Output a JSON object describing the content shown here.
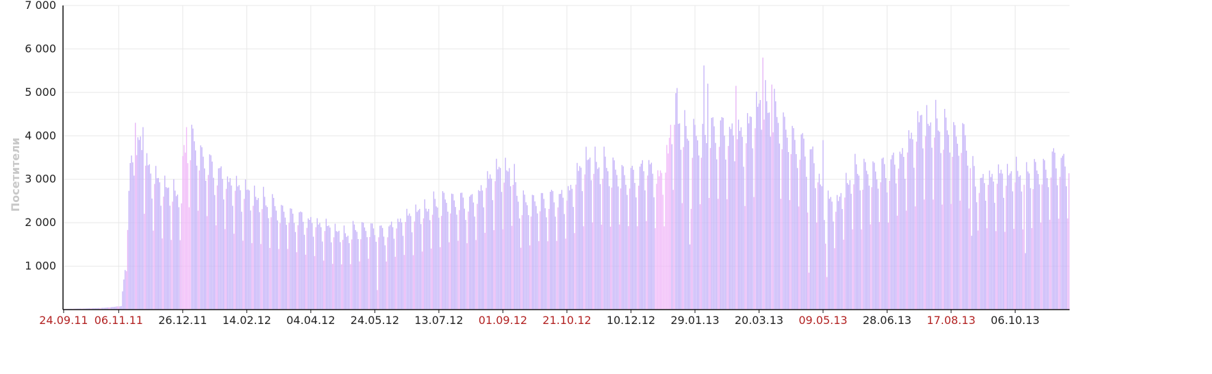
{
  "chart_data": {
    "type": "bar",
    "title": "",
    "xlabel": "",
    "ylabel": "Посетители",
    "ylim": [
      0,
      7000
    ],
    "yticks": [
      1000,
      2000,
      3000,
      4000,
      5000,
      6000,
      7000
    ],
    "ytick_labels": [
      "1 000",
      "2 000",
      "3 000",
      "4 000",
      "5 000",
      "6 000",
      "7 000"
    ],
    "grid": true,
    "x_start": "2011-09-24",
    "x_end": "2013-11-17",
    "xtick_labels": [
      {
        "label": "24.09.11",
        "date": "2011-09-24",
        "color": "#b22222"
      },
      {
        "label": "06.11.11",
        "date": "2011-11-06",
        "color": "#b22222"
      },
      {
        "label": "26.12.11",
        "date": "2011-12-26",
        "color": "#222222"
      },
      {
        "label": "14.02.12",
        "date": "2012-02-14",
        "color": "#222222"
      },
      {
        "label": "04.04.12",
        "date": "2012-04-04",
        "color": "#222222"
      },
      {
        "label": "24.05.12",
        "date": "2012-05-24",
        "color": "#222222"
      },
      {
        "label": "13.07.12",
        "date": "2012-07-13",
        "color": "#222222"
      },
      {
        "label": "01.09.12",
        "date": "2012-09-01",
        "color": "#b22222"
      },
      {
        "label": "21.10.12",
        "date": "2012-10-21",
        "color": "#b22222"
      },
      {
        "label": "10.12.12",
        "date": "2012-12-10",
        "color": "#222222"
      },
      {
        "label": "29.01.13",
        "date": "2013-01-29",
        "color": "#222222"
      },
      {
        "label": "20.03.13",
        "date": "2013-03-20",
        "color": "#222222"
      },
      {
        "label": "09.05.13",
        "date": "2013-05-09",
        "color": "#b22222"
      },
      {
        "label": "28.06.13",
        "date": "2013-06-28",
        "color": "#222222"
      },
      {
        "label": "17.08.13",
        "date": "2013-08-17",
        "color": "#b22222"
      },
      {
        "label": "06.10.13",
        "date": "2013-10-06",
        "color": "#222222"
      }
    ],
    "colors": {
      "weekday": "#c5b3f8",
      "weekend": "#e6b3f6",
      "holiday": "#f0b8f8"
    },
    "weekday_profile": [
      1.04,
      1.0,
      0.98,
      0.94,
      0.82,
      0.58,
      0.88
    ],
    "series": [
      {
        "values_description_note": "",
        "anchors": [
          [
            "2011-09-24",
            15
          ],
          [
            "2011-10-10",
            25
          ],
          [
            "2011-10-25",
            40
          ],
          [
            "2011-11-08",
            80
          ],
          [
            "2011-11-12",
            1400
          ],
          [
            "2011-11-15",
            3100
          ],
          [
            "2011-11-19",
            3900
          ],
          [
            "2011-11-25",
            3600
          ],
          [
            "2011-12-03",
            3000
          ],
          [
            "2011-12-15",
            2700
          ],
          [
            "2011-12-25",
            2650
          ],
          [
            "2011-12-27",
            3500
          ],
          [
            "2011-12-31",
            3950
          ],
          [
            "2012-01-10",
            3500
          ],
          [
            "2012-01-22",
            3100
          ],
          [
            "2012-02-05",
            2800
          ],
          [
            "2012-02-25",
            2500
          ],
          [
            "2012-03-15",
            2200
          ],
          [
            "2012-04-04",
            2000
          ],
          [
            "2012-05-01",
            1700
          ],
          [
            "2012-05-12",
            1850
          ],
          [
            "2012-05-22",
            1850
          ],
          [
            "2012-05-31",
            1750
          ],
          [
            "2012-06-12",
            2000
          ],
          [
            "2012-06-30",
            2250
          ],
          [
            "2012-07-20",
            2500
          ],
          [
            "2012-08-08",
            2450
          ],
          [
            "2012-08-25",
            3100
          ],
          [
            "2012-09-08",
            3200
          ],
          [
            "2012-09-14",
            2400
          ],
          [
            "2012-10-05",
            2500
          ],
          [
            "2012-10-21",
            2600
          ],
          [
            "2012-11-05",
            3400
          ],
          [
            "2012-11-25",
            3200
          ],
          [
            "2012-12-10",
            3000
          ],
          [
            "2012-12-25",
            3300
          ],
          [
            "2012-12-31",
            2900
          ],
          [
            "2013-01-08",
            3500
          ],
          [
            "2013-01-12",
            4650
          ],
          [
            "2013-01-20",
            4000
          ],
          [
            "2013-01-29",
            3900
          ],
          [
            "2013-02-15",
            4100
          ],
          [
            "2013-03-10",
            4000
          ],
          [
            "2013-03-20",
            4700
          ],
          [
            "2013-03-28",
            4600
          ],
          [
            "2013-04-15",
            3900
          ],
          [
            "2013-05-01",
            3500
          ],
          [
            "2013-05-10",
            2500
          ],
          [
            "2013-05-20",
            2400
          ],
          [
            "2013-06-01",
            3100
          ],
          [
            "2013-06-28",
            3200
          ],
          [
            "2013-07-12",
            3600
          ],
          [
            "2013-07-25",
            4300
          ],
          [
            "2013-08-05",
            4200
          ],
          [
            "2013-08-17",
            4000
          ],
          [
            "2013-08-30",
            3900
          ],
          [
            "2013-09-05",
            2900
          ],
          [
            "2013-09-20",
            3000
          ],
          [
            "2013-10-06",
            3100
          ],
          [
            "2013-10-30",
            3200
          ],
          [
            "2013-11-06",
            3400
          ],
          [
            "2013-11-17",
            3300
          ]
        ],
        "spikes": [
          [
            "2013-01-15",
            5100
          ],
          [
            "2013-02-05",
            5620
          ],
          [
            "2013-02-08",
            5200
          ],
          [
            "2013-03-02",
            5150
          ],
          [
            "2013-03-23",
            5800
          ],
          [
            "2013-03-30",
            5180
          ],
          [
            "2011-11-19",
            4300
          ],
          [
            "2011-11-25",
            4200
          ],
          [
            "2011-12-29",
            4200
          ]
        ],
        "dips": [
          [
            "2012-05-26",
            450
          ],
          [
            "2013-01-25",
            1500
          ],
          [
            "2013-04-28",
            850
          ],
          [
            "2013-05-12",
            750
          ],
          [
            "2013-05-09",
            3900
          ],
          [
            "2013-09-02",
            1700
          ],
          [
            "2013-10-14",
            1300
          ]
        ]
      }
    ]
  }
}
